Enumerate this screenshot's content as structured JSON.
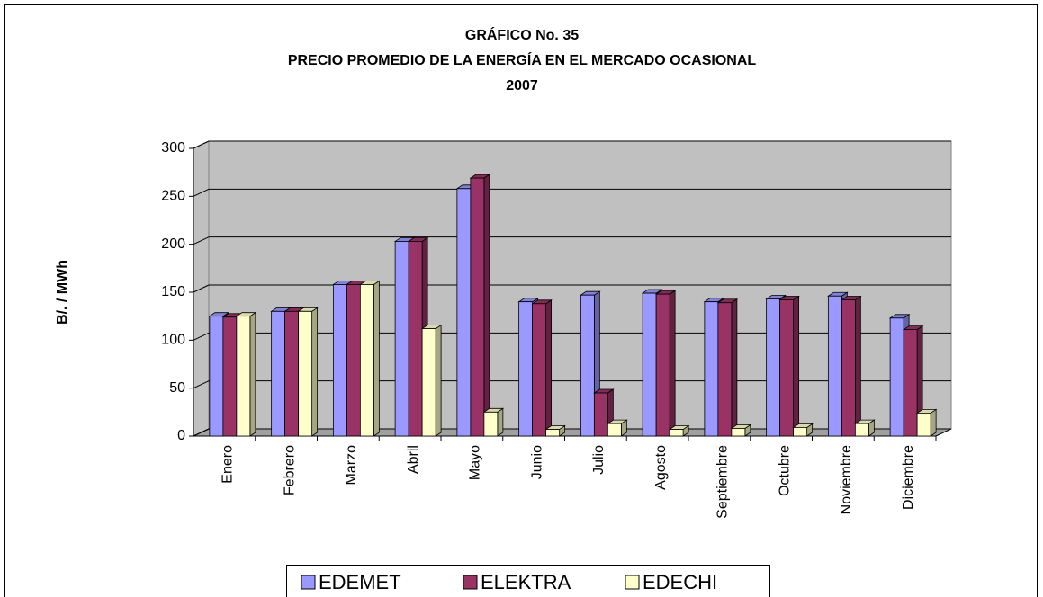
{
  "chart_data": {
    "type": "bar3d",
    "title": [
      "GRÁFICO No.  35",
      "PRECIO PROMEDIO DE LA ENERGÍA EN EL MERCADO OCASIONAL",
      "2007"
    ],
    "y_label": "B/.  / MWh",
    "categories": [
      "Enero",
      "Febrero",
      "Marzo",
      "Abril",
      "Mayo",
      "Junio",
      "Julio",
      "Agosto",
      "Septiembre",
      "Octubre",
      "Noviembre",
      "Diciembre"
    ],
    "series": [
      {
        "name": "EDEMET",
        "color": "#9999ff",
        "values": [
          125,
          130,
          158,
          203,
          258,
          140,
          147,
          149,
          140,
          143,
          146,
          123
        ]
      },
      {
        "name": "ELEKTRA",
        "color": "#993366",
        "values": [
          124,
          130,
          158,
          203,
          269,
          138,
          45,
          148,
          139,
          142,
          142,
          111
        ]
      },
      {
        "name": "EDECHI",
        "color": "#ffffcc",
        "values": [
          125,
          130,
          158,
          112,
          25,
          7,
          13,
          7,
          8,
          9,
          13,
          24
        ]
      }
    ],
    "ylim": [
      0,
      300
    ],
    "yticks": [
      0,
      50,
      100,
      150,
      200,
      250,
      300
    ],
    "grid": true,
    "legend": "bottom"
  }
}
